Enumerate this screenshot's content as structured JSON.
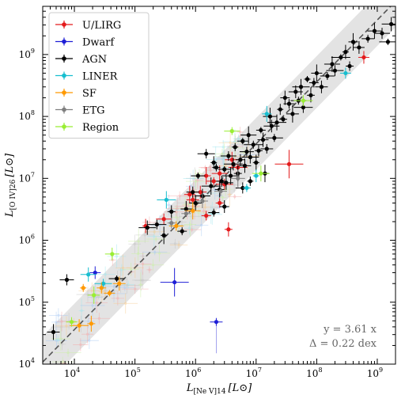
{
  "chart_data": {
    "type": "scatter",
    "xscale": "log",
    "yscale": "log",
    "xlim": [
      3000,
      2000000000
    ],
    "ylim": [
      10000,
      6000000000
    ],
    "xlabel": "L[Ne V]14 [L⊙]",
    "xlabel_main": "L",
    "xlabel_sub": "[Ne V]14",
    "xlabel_unit": "[L⊙]",
    "ylabel_main": "L",
    "ylabel_sub": "[O IV]26",
    "ylabel_unit": "[L⊙]",
    "x_major_ticks": [
      {
        "value": 10000,
        "base": "10",
        "exp": "4"
      },
      {
        "value": 100000,
        "base": "10",
        "exp": "5"
      },
      {
        "value": 1000000,
        "base": "10",
        "exp": "6"
      },
      {
        "value": 10000000,
        "base": "10",
        "exp": "7"
      },
      {
        "value": 100000000,
        "base": "10",
        "exp": "8"
      },
      {
        "value": 1000000000,
        "base": "10",
        "exp": "9"
      }
    ],
    "y_major_ticks": [
      {
        "value": 10000,
        "base": "10",
        "exp": "4"
      },
      {
        "value": 100000,
        "base": "10",
        "exp": "5"
      },
      {
        "value": 1000000,
        "base": "10",
        "exp": "6"
      },
      {
        "value": 10000000,
        "base": "10",
        "exp": "7"
      },
      {
        "value": 100000000,
        "base": "10",
        "exp": "8"
      },
      {
        "value": 1000000000,
        "base": "10",
        "exp": "9"
      }
    ],
    "fit": {
      "slope": 3.61,
      "scatter_dex": 0.22
    },
    "annotations": [
      {
        "text": "y = 3.61 x"
      },
      {
        "text": "Δ = 0.22 dex"
      }
    ],
    "legend_position": "top-left",
    "colors": {
      "fit_line": "#555555",
      "band": "#d9d9d9"
    },
    "series": [
      {
        "name": "U/LIRG",
        "color": "#e41a1c",
        "points": [
          [
            35000000,
            17000000
          ],
          [
            3500000,
            1500000
          ],
          [
            1500000,
            2500000
          ],
          [
            800000,
            5500000
          ],
          [
            1200000,
            6000000
          ],
          [
            2000000,
            9000000
          ],
          [
            2500000,
            12000000
          ],
          [
            3000000,
            8000000
          ],
          [
            5000000,
            15000000
          ],
          [
            150000,
            1700000
          ],
          [
            2500000,
            4000000
          ],
          [
            1500000,
            11000000
          ],
          [
            600000000,
            900000000
          ],
          [
            900000,
            4500000
          ],
          [
            4000000,
            20000000
          ],
          [
            300000,
            2200000
          ]
        ]
      },
      {
        "name": "Dwarf",
        "color": "#1f1fd6",
        "points": [
          [
            450000,
            210000
          ],
          [
            22000,
            300000
          ],
          [
            2200000,
            48000
          ]
        ]
      },
      {
        "name": "AGN",
        "color": "#000000",
        "points": [
          [
            4500,
            33000
          ],
          [
            7500,
            230000
          ],
          [
            50000,
            240000
          ],
          [
            160000,
            1600000
          ],
          [
            230000,
            1800000
          ],
          [
            300000,
            1200000
          ],
          [
            400000,
            2900000
          ],
          [
            600000,
            1400000
          ],
          [
            700000,
            3200000
          ],
          [
            900000,
            6000000
          ],
          [
            1100000,
            11000000
          ],
          [
            1300000,
            5200000
          ],
          [
            1500000,
            25000000
          ],
          [
            1800000,
            7500000
          ],
          [
            2000000,
            18000000
          ],
          [
            2200000,
            15000000
          ],
          [
            2500000,
            6600000
          ],
          [
            2700000,
            9000000
          ],
          [
            3000000,
            14000000
          ],
          [
            3200000,
            8500000
          ],
          [
            3500000,
            23000000
          ],
          [
            3800000,
            11000000
          ],
          [
            4200000,
            17000000
          ],
          [
            4500000,
            32000000
          ],
          [
            5000000,
            12000000
          ],
          [
            5500000,
            20000000
          ],
          [
            6000000,
            40000000
          ],
          [
            6500000,
            16000000
          ],
          [
            7000000,
            27000000
          ],
          [
            7500000,
            50000000
          ],
          [
            8000000,
            22000000
          ],
          [
            9000000,
            35000000
          ],
          [
            10000000,
            18000000
          ],
          [
            11000000,
            28000000
          ],
          [
            12000000,
            60000000
          ],
          [
            13000000,
            42000000
          ],
          [
            15000000,
            30000000
          ],
          [
            17000000,
            100000000
          ],
          [
            18000000,
            70000000
          ],
          [
            20000000,
            45000000
          ],
          [
            22000000,
            80000000
          ],
          [
            25000000,
            130000000
          ],
          [
            28000000,
            90000000
          ],
          [
            30000000,
            200000000
          ],
          [
            35000000,
            160000000
          ],
          [
            40000000,
            110000000
          ],
          [
            45000000,
            250000000
          ],
          [
            50000000,
            180000000
          ],
          [
            55000000,
            300000000
          ],
          [
            60000000,
            140000000
          ],
          [
            70000000,
            400000000
          ],
          [
            80000000,
            220000000
          ],
          [
            90000000,
            350000000
          ],
          [
            100000000,
            500000000
          ],
          [
            120000000,
            300000000
          ],
          [
            150000000,
            450000000
          ],
          [
            180000000,
            700000000
          ],
          [
            200000000,
            550000000
          ],
          [
            250000000,
            900000000
          ],
          [
            300000000,
            1100000000
          ],
          [
            350000000,
            650000000
          ],
          [
            400000000,
            1600000000
          ],
          [
            500000000,
            1300000000
          ],
          [
            700000000,
            1800000000
          ],
          [
            900000000,
            2400000000
          ],
          [
            1200000000,
            2200000000
          ],
          [
            1500000000,
            1600000000
          ],
          [
            1700000000,
            3100000000
          ],
          [
            8000000,
            9000000
          ],
          [
            14000000,
            12000000
          ],
          [
            3000000,
            3500000
          ],
          [
            2000000,
            2800000
          ],
          [
            1000000,
            4000000
          ],
          [
            6000000,
            7000000
          ]
        ]
      },
      {
        "name": "LINER",
        "color": "#17becf",
        "points": [
          [
            17000,
            280000
          ],
          [
            30000,
            200000
          ],
          [
            330000,
            4500000
          ],
          [
            10000000,
            11000000
          ],
          [
            7000000,
            7000000
          ],
          [
            15000000,
            110000000
          ],
          [
            300000000,
            500000000
          ]
        ]
      },
      {
        "name": "SF",
        "color": "#ff9900",
        "points": [
          [
            12000,
            42000
          ],
          [
            14000,
            170000
          ],
          [
            19000,
            45000
          ],
          [
            28000,
            170000
          ],
          [
            38000,
            140000
          ],
          [
            55000,
            200000
          ],
          [
            480000,
            1700000
          ],
          [
            900000,
            3000000
          ]
        ]
      },
      {
        "name": "ETG",
        "color": "#7f7f7f",
        "points": [
          [
            400000,
            1900000
          ],
          [
            700000,
            2700000
          ],
          [
            1300000,
            4300000
          ],
          [
            2600000,
            6200000
          ],
          [
            5000000,
            10000000
          ]
        ]
      },
      {
        "name": "Region",
        "color": "#99ee33",
        "points": [
          [
            9000,
            48000
          ],
          [
            21000,
            130000
          ],
          [
            42000,
            600000
          ],
          [
            4000000,
            58000000
          ],
          [
            12000000,
            12000000
          ],
          [
            60000000,
            180000000
          ]
        ]
      }
    ]
  }
}
